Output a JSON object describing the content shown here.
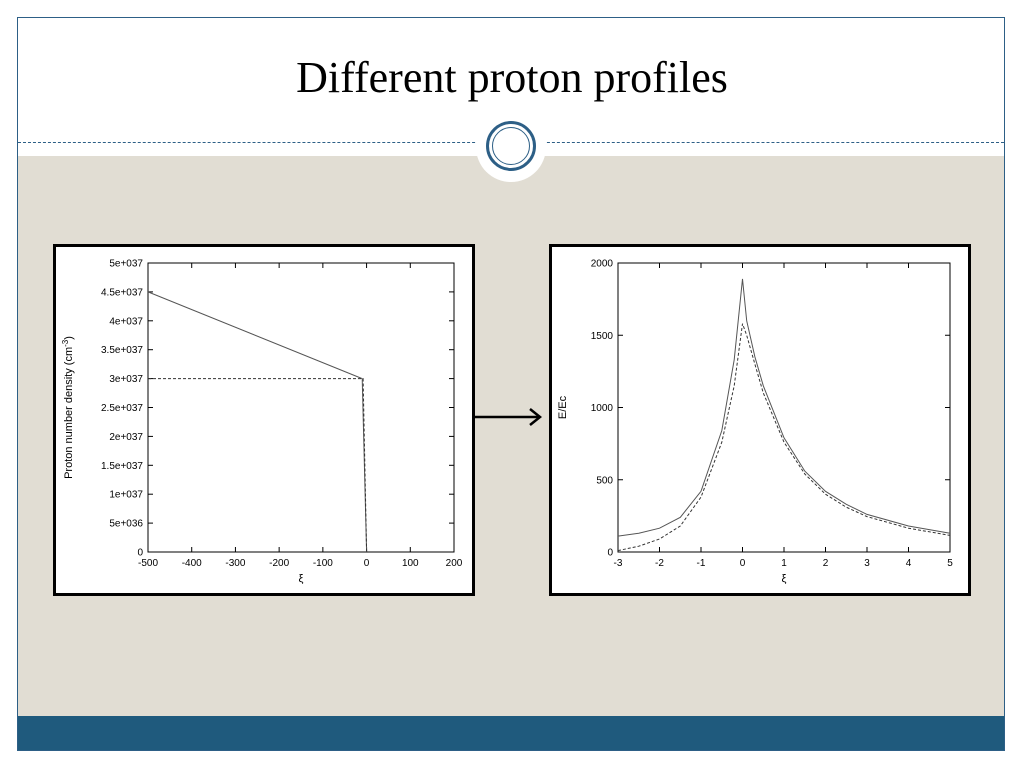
{
  "slide": {
    "title": "Different proton profiles"
  },
  "colors": {
    "accent": "#2d5f86",
    "footer": "#1f5a7d",
    "content_bg": "#e1ddd3"
  },
  "chart_data": [
    {
      "type": "line",
      "title": "",
      "xlabel": "ξ",
      "ylabel": "Proton number density (cm",
      "ylabel_sup": "-3",
      "ylabel_tail": ")",
      "xlim": [
        -500,
        200
      ],
      "ylim": [
        0,
        5e+37
      ],
      "xticks": [
        -500,
        -400,
        -300,
        -200,
        -100,
        0,
        100,
        200
      ],
      "yticks": [
        0,
        5e+36,
        1e+37,
        1.5e+37,
        2e+37,
        2.5e+37,
        3e+37,
        3.5e+37,
        4e+37,
        4.5e+37,
        5e+37
      ],
      "ytick_labels": [
        "0",
        "5e+036",
        "1e+037",
        "1.5e+037",
        "2e+037",
        "2.5e+037",
        "3e+037",
        "3.5e+037",
        "4e+037",
        "4.5e+037",
        "5e+037"
      ],
      "grid": false,
      "series": [
        {
          "style": "solid",
          "x": [
            -500,
            -10,
            0,
            0
          ],
          "y": [
            4.5e+37,
            3e+37,
            0,
            0
          ]
        },
        {
          "style": "dashed",
          "x": [
            -500,
            -8,
            0
          ],
          "y": [
            3e+37,
            3e+37,
            0
          ]
        }
      ]
    },
    {
      "type": "line",
      "title": "",
      "xlabel": "ξ",
      "ylabel": "E/Ec",
      "xlim": [
        -3,
        5
      ],
      "ylim": [
        0,
        2000
      ],
      "xticks": [
        -3,
        -2,
        -1,
        0,
        1,
        2,
        3,
        4,
        5
      ],
      "yticks": [
        0,
        500,
        1000,
        1500,
        2000
      ],
      "grid": false,
      "series": [
        {
          "style": "solid",
          "x": [
            -3,
            -2.5,
            -2,
            -1.5,
            -1,
            -0.5,
            -0.2,
            0,
            0.1,
            0.3,
            0.5,
            1,
            1.5,
            2,
            2.5,
            3,
            4,
            5
          ],
          "y": [
            110,
            130,
            165,
            240,
            420,
            840,
            1330,
            1890,
            1600,
            1350,
            1150,
            790,
            560,
            420,
            330,
            260,
            180,
            130
          ]
        },
        {
          "style": "dashed",
          "x": [
            -3,
            -2.5,
            -2,
            -1.5,
            -1,
            -0.5,
            -0.2,
            0,
            0.1,
            0.3,
            0.5,
            1,
            1.5,
            2,
            2.5,
            3,
            4,
            5
          ],
          "y": [
            10,
            40,
            90,
            180,
            380,
            760,
            1150,
            1580,
            1500,
            1300,
            1100,
            760,
            540,
            400,
            310,
            245,
            165,
            115
          ]
        }
      ]
    }
  ]
}
